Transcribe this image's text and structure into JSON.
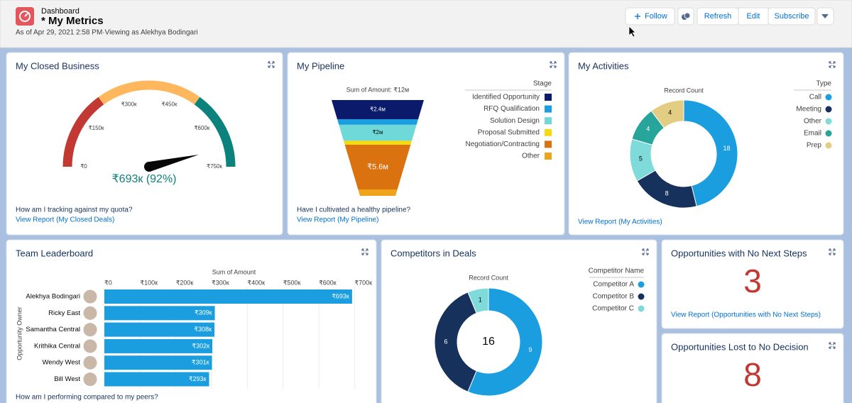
{
  "header": {
    "label": "Dashboard",
    "title": "* My Metrics",
    "subtitle": "As of Apr 29, 2021 2:58 PM·Viewing as Alekhya Bodingari"
  },
  "buttons": [
    "Follow",
    "Refresh",
    "Edit",
    "Subscribe"
  ],
  "chart_data": [
    {
      "type": "gauge",
      "title": "My Closed Business",
      "value": 693,
      "value_label": "₹693к (92%)",
      "xlim": [
        0,
        750
      ],
      "xticks": [
        {
          "value": 0,
          "label": "₹0"
        },
        {
          "value": 150,
          "label": "₹150к"
        },
        {
          "value": 300,
          "label": "₹300к"
        },
        {
          "value": 450,
          "label": "₹450к"
        },
        {
          "value": 600,
          "label": "₹600к"
        },
        {
          "value": 750,
          "label": "₹750к"
        }
      ],
      "bands": [
        [
          0,
          225
        ],
        [
          225,
          525
        ],
        [
          525,
          750
        ]
      ],
      "band_colors": [
        "#c23934",
        "#ffb75d",
        "#0b827c"
      ],
      "needle_color": "#080707",
      "question": "How am I tracking against my quota?",
      "link": "View Report (My Closed Deals)"
    },
    {
      "type": "funnel",
      "title": "My Pipeline",
      "subtitle": "Sum of Amount: ₹12м",
      "legend_title": "Stage",
      "categories": [
        "Identified Opportunity",
        "RFQ Qualification",
        "Solution Design",
        "Proposal Submitted",
        "Negotiation/Contracting",
        "Other"
      ],
      "values": [
        2.4,
        0.7,
        2,
        0.5,
        5.6,
        0.8
      ],
      "value_labels": [
        "₹2.4м",
        null,
        "₹2м",
        null,
        "₹5.6м",
        null
      ],
      "colors": [
        "#0c1a6b",
        "#1b9ee0",
        "#6fd9d9",
        "#f5d913",
        "#d9720f",
        "#efa31a"
      ],
      "question": "Have I cultivated a healthy pipeline?",
      "link": "View Report (My Pipeline)"
    },
    {
      "type": "donut",
      "title": "My Activities",
      "subtitle": "Record Count",
      "legend_title": "Type",
      "categories": [
        "Call",
        "Meeting",
        "Other",
        "Email",
        "Prep"
      ],
      "values": [
        18,
        8,
        5,
        4,
        4
      ],
      "colors": [
        "#1b9ee0",
        "#16325c",
        "#7fdbd9",
        "#27a59a",
        "#e3cd83"
      ],
      "link": "View Report (My Activities)"
    },
    {
      "type": "bar",
      "orientation": "horizontal",
      "title": "Team Leaderboard",
      "x_label": "Sum of Amount",
      "y_label": "Opportunity Owner",
      "categories": [
        "Alekhya Bodingari",
        "Ricky East",
        "Samantha Central",
        "Krithika Central",
        "Wendy West",
        "Bill West"
      ],
      "values": [
        693,
        309,
        308,
        302,
        301,
        293
      ],
      "value_labels": [
        "₹693к",
        "₹309к",
        "₹308к",
        "₹302к",
        "₹301к",
        "₹293к"
      ],
      "color": "#1b9ee0",
      "xlim": [
        0,
        725
      ],
      "xticks": [
        {
          "value": 0,
          "label": "₹0"
        },
        {
          "value": 100,
          "label": "₹100к"
        },
        {
          "value": 200,
          "label": "₹200к"
        },
        {
          "value": 300,
          "label": "₹300к"
        },
        {
          "value": 400,
          "label": "₹400к"
        },
        {
          "value": 500,
          "label": "₹500к"
        },
        {
          "value": 600,
          "label": "₹600к"
        },
        {
          "value": 700,
          "label": "₹700к"
        }
      ],
      "grid": true,
      "question": "How am I performing compared to my peers?"
    },
    {
      "type": "donut",
      "title": "Competitors in Deals",
      "subtitle": "Record Count",
      "legend_title": "Competitor Name",
      "categories": [
        "Competitor A",
        "Competitor B",
        "Competitor C"
      ],
      "values": [
        9,
        6,
        1
      ],
      "total": 16,
      "colors": [
        "#1b9ee0",
        "#16325c",
        "#7fdbd9"
      ]
    }
  ],
  "metrics": [
    {
      "title": "Opportunities with No Next Steps",
      "value": 3,
      "link": "View Report (Opportunities with No Next Steps)"
    },
    {
      "title": "Opportunities Lost to No Decision",
      "value": 8
    }
  ]
}
